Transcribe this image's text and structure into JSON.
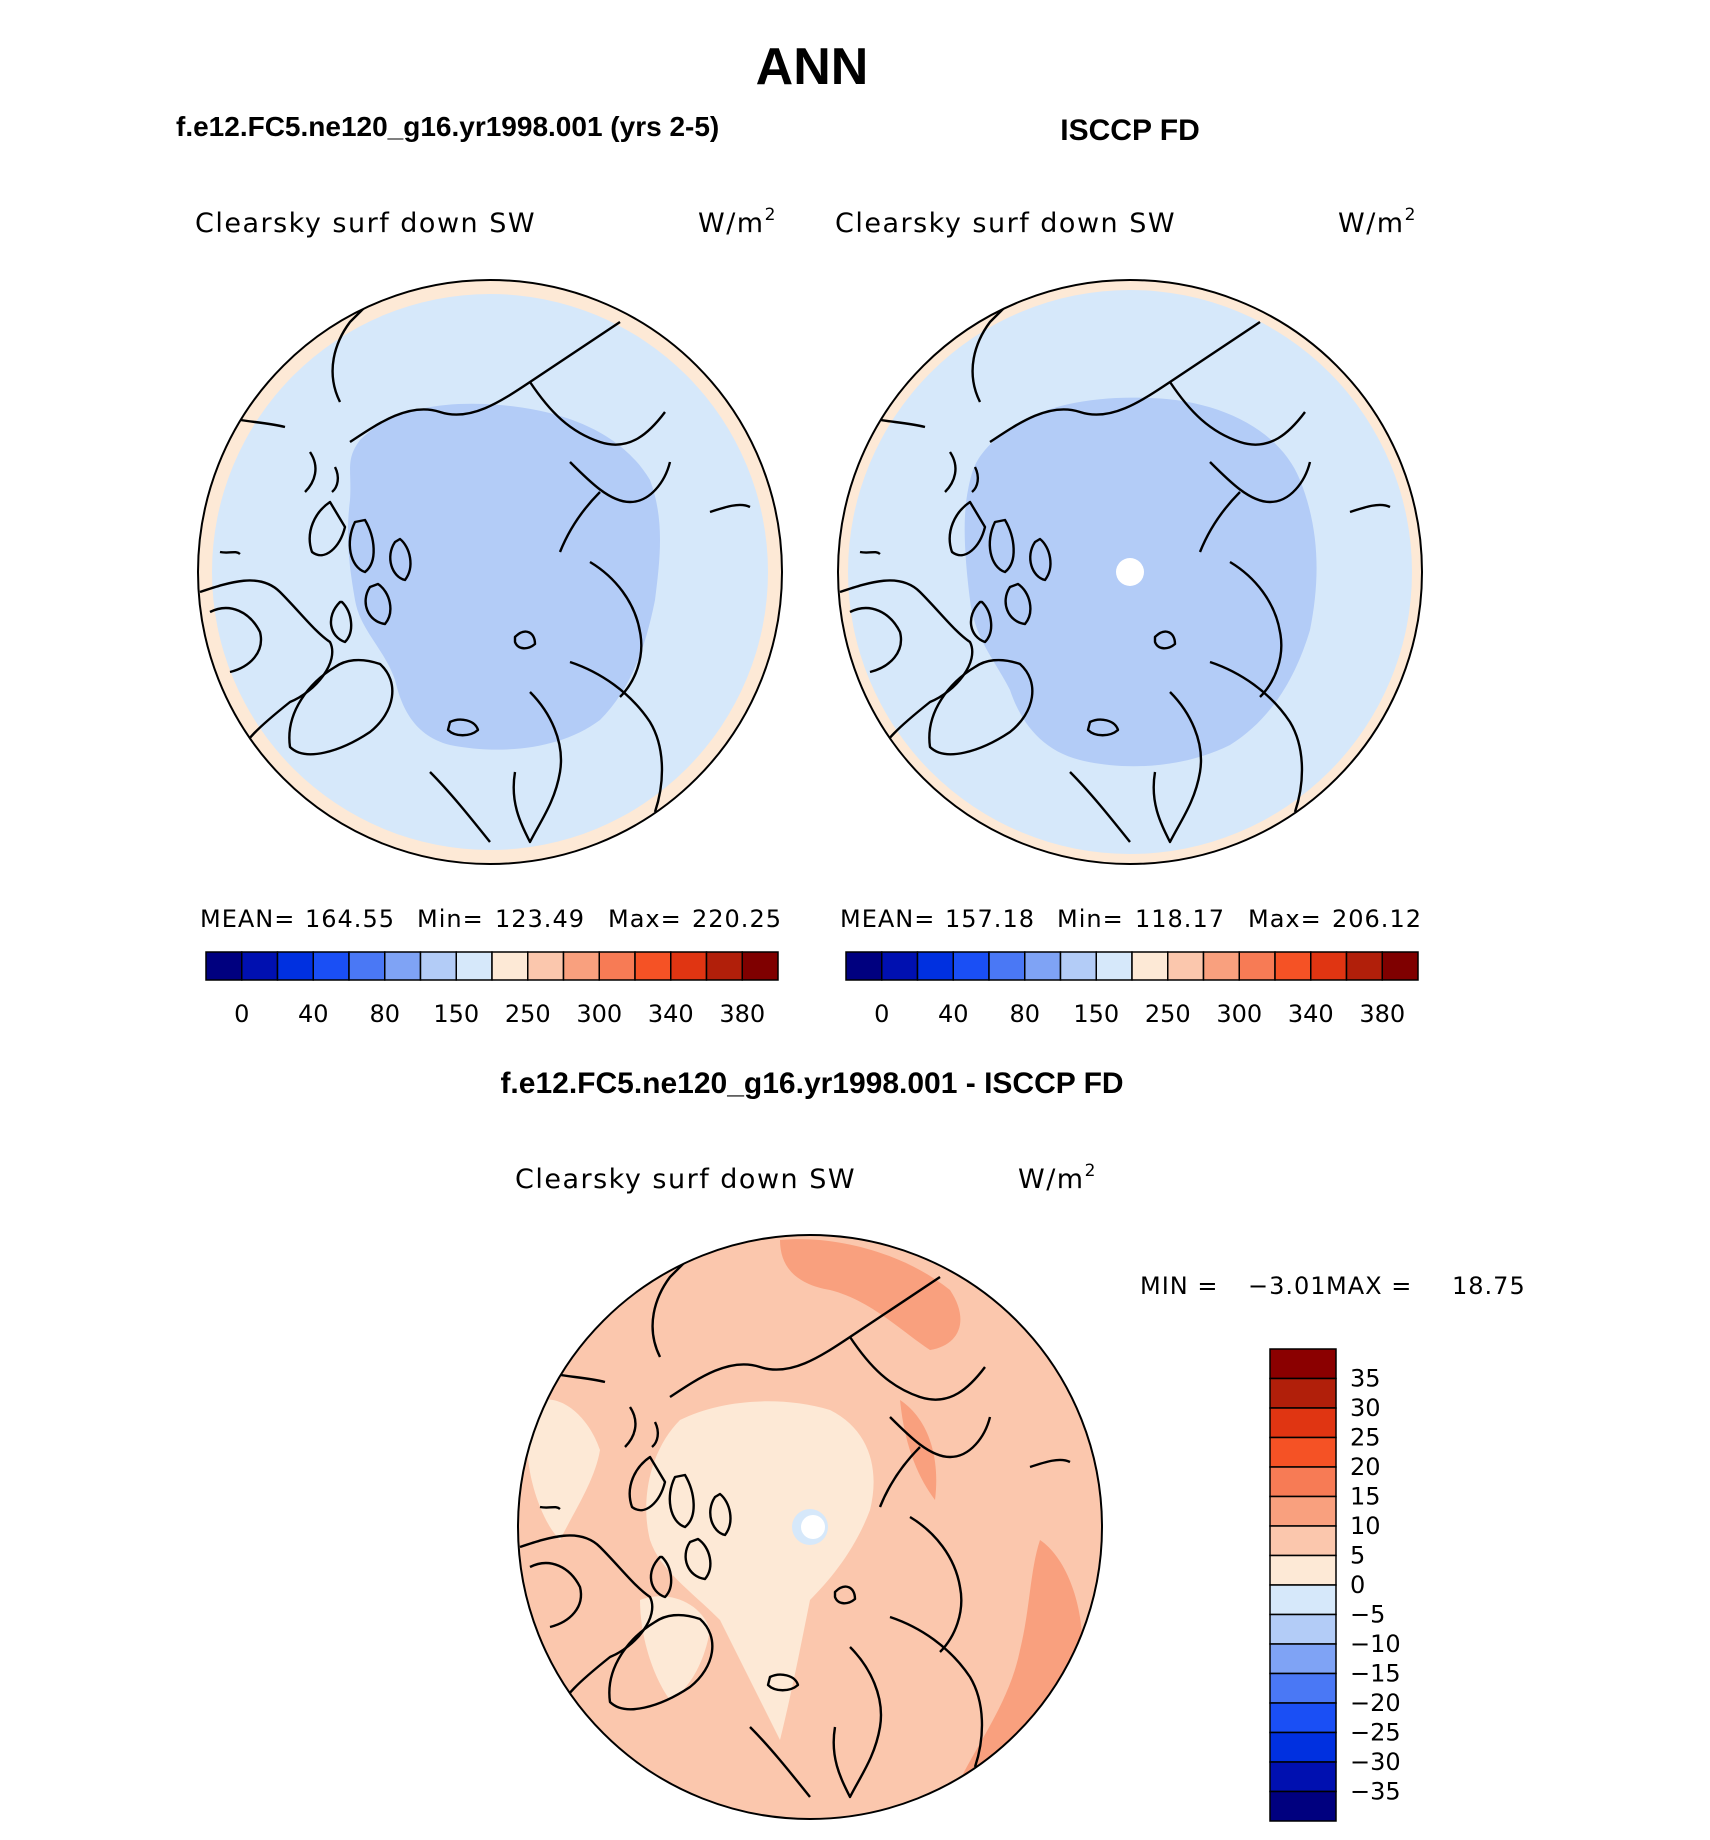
{
  "title": "ANN",
  "panels": [
    {
      "case_title": "f.e12.FC5.ne120_g16.yr1998.001 (yrs 2-5)",
      "variable": "Clearsky surf down SW",
      "units_base": "W/m",
      "units_exp": "2",
      "stats": {
        "mean_label": "MEAN=",
        "mean": "164.55",
        "min_label": "Min=",
        "min": "123.49",
        "max_label": "Max=",
        "max": "220.25"
      }
    },
    {
      "case_title": "ISCCP FD",
      "variable": "Clearsky surf down SW",
      "units_base": "W/m",
      "units_exp": "2",
      "stats": {
        "mean_label": "MEAN=",
        "mean": "157.18",
        "min_label": "Min=",
        "min": "118.17",
        "max_label": "Max=",
        "max": "206.12"
      }
    }
  ],
  "diff_panel": {
    "case_title": "f.e12.FC5.ne120_g16.yr1998.001 - ISCCP FD",
    "variable": "Clearsky surf down SW",
    "units_base": "W/m",
    "units_exp": "2",
    "min_label": "MIN =",
    "min": "−3.01",
    "max_label": "MAX =",
    "max": "18.75"
  },
  "abs_colorbar": {
    "colors": [
      "#00007f",
      "#0010b0",
      "#0030e0",
      "#1a4ff5",
      "#4a78f5",
      "#7fa3f5",
      "#b3ccf7",
      "#d6e8fa",
      "#fde9d6",
      "#fbc7ad",
      "#f9a07e",
      "#f77b55",
      "#f55225",
      "#e03512",
      "#b11f0a",
      "#7f0000"
    ],
    "tick_labels": [
      "0",
      "40",
      "80",
      "150",
      "250",
      "300",
      "340",
      "380"
    ]
  },
  "diff_colorbar": {
    "colors_top_to_bottom": [
      "#8b0000",
      "#b11f0a",
      "#e03512",
      "#f55225",
      "#f77b55",
      "#f9a07e",
      "#fbc7ad",
      "#fde9d6",
      "#d6e8fa",
      "#b3ccf7",
      "#7fa3f5",
      "#4a78f5",
      "#1a4ff5",
      "#0030e0",
      "#0010b0",
      "#00007f"
    ],
    "tick_labels": [
      "35",
      "30",
      "25",
      "20",
      "15",
      "10",
      "5",
      "0",
      "−5",
      "−10",
      "−15",
      "−20",
      "−25",
      "−30",
      "−35"
    ]
  },
  "map_colors": {
    "outer_peach": "#fde9d6",
    "light_blue": "#d6e8fa",
    "mid_blue": "#b3ccf7",
    "diff_base": "#fbc7ad",
    "diff_light": "#fde9d6",
    "diff_dark": "#f9a07e",
    "coast": "#000000"
  }
}
